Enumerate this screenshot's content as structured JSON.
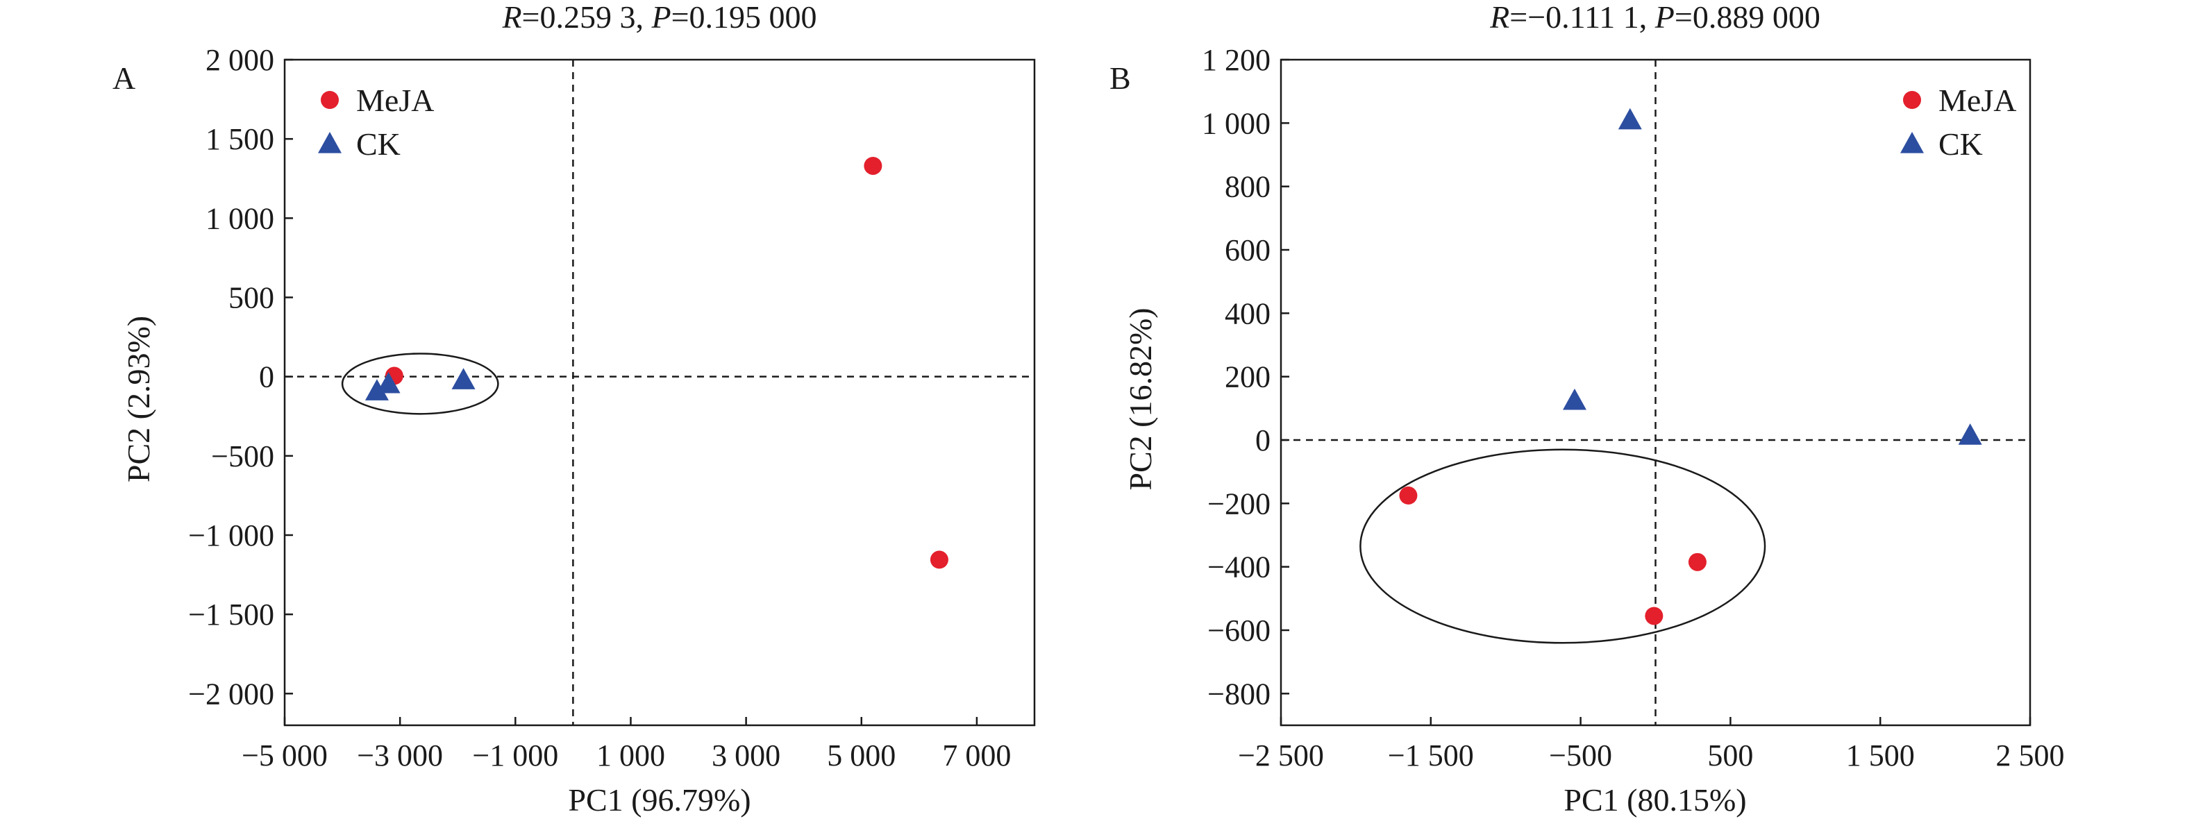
{
  "colors": {
    "meja": "#e3202c",
    "ck": "#2c4ea0",
    "axis": "#1a1a1a"
  },
  "chart_data": [
    {
      "type": "scatter",
      "panel": "A",
      "title_parts": {
        "r_symbol": "R",
        "r_value": "=0.259 3, ",
        "p_symbol": "P",
        "p_value": "=0.195 000"
      },
      "xlabel": "PC1 (96.79%)",
      "ylabel": "PC2 (2.93%)",
      "xlim": [
        -5000,
        8000
      ],
      "ylim": [
        -2200,
        2000
      ],
      "xticks": [
        -5000,
        -3000,
        -1000,
        1000,
        3000,
        5000,
        7000
      ],
      "xtick_labels": [
        "−5 000",
        "−3 000",
        "−1 000",
        "1 000",
        "3 000",
        "5 000",
        "7 000"
      ],
      "yticks": [
        2000,
        1500,
        1000,
        500,
        0,
        -500,
        -1000,
        -1500,
        -2000
      ],
      "ytick_labels": [
        "2 000",
        "1 500",
        "1 000",
        "500",
        "0",
        "−500",
        "−1 000",
        "−1 500",
        "−2 000"
      ],
      "ref_lines": {
        "x": 0,
        "y": 0
      },
      "legend": {
        "position": "top-left",
        "entries": [
          {
            "name": "MeJA",
            "marker": "circle"
          },
          {
            "name": "CK",
            "marker": "triangle"
          }
        ]
      },
      "series": [
        {
          "name": "MeJA",
          "marker": "circle",
          "points": [
            [
              5200,
              1330
            ],
            [
              6350,
              -1155
            ],
            [
              -3100,
              5
            ]
          ]
        },
        {
          "name": "CK",
          "marker": "triangle",
          "points": [
            [
              -1900,
              -20
            ],
            [
              -3200,
              -45
            ],
            [
              -3400,
              -90
            ]
          ]
        }
      ],
      "ellipse": {
        "cx": -2650,
        "cy": -45,
        "rx": 1350,
        "ry": 190
      }
    },
    {
      "type": "scatter",
      "panel": "B",
      "title_parts": {
        "r_symbol": "R",
        "r_value": "=−0.111 1, ",
        "p_symbol": "P",
        "p_value": "=0.889 000"
      },
      "xlabel": "PC1 (80.15%)",
      "ylabel": "PC2 (16.82%)",
      "xlim": [
        -2500,
        2500
      ],
      "ylim": [
        -900,
        1200
      ],
      "xticks": [
        -2500,
        -1500,
        -500,
        500,
        1500,
        2500
      ],
      "xtick_labels": [
        "−2 500",
        "−1 500",
        "−500",
        "500",
        "1 500",
        "2 500"
      ],
      "yticks": [
        1200,
        1000,
        800,
        600,
        400,
        200,
        0,
        -200,
        -400,
        -600,
        -800
      ],
      "ytick_labels": [
        "1 200",
        "1 000",
        "800",
        "600",
        "400",
        "200",
        "0",
        "−200",
        "−400",
        "−600",
        "−800"
      ],
      "ref_lines": {
        "x": 0,
        "y": 0
      },
      "legend": {
        "position": "top-right",
        "entries": [
          {
            "name": "MeJA",
            "marker": "circle"
          },
          {
            "name": "CK",
            "marker": "triangle"
          }
        ]
      },
      "series": [
        {
          "name": "MeJA",
          "marker": "circle",
          "points": [
            [
              -1650,
              -175
            ],
            [
              280,
              -385
            ],
            [
              -10,
              -555
            ]
          ]
        },
        {
          "name": "CK",
          "marker": "triangle",
          "points": [
            [
              -170,
              1010
            ],
            [
              -540,
              125
            ],
            [
              2100,
              15
            ]
          ]
        }
      ],
      "ellipse": {
        "cx": -620,
        "cy": -335,
        "rx": 1350,
        "ry": 305
      }
    }
  ]
}
